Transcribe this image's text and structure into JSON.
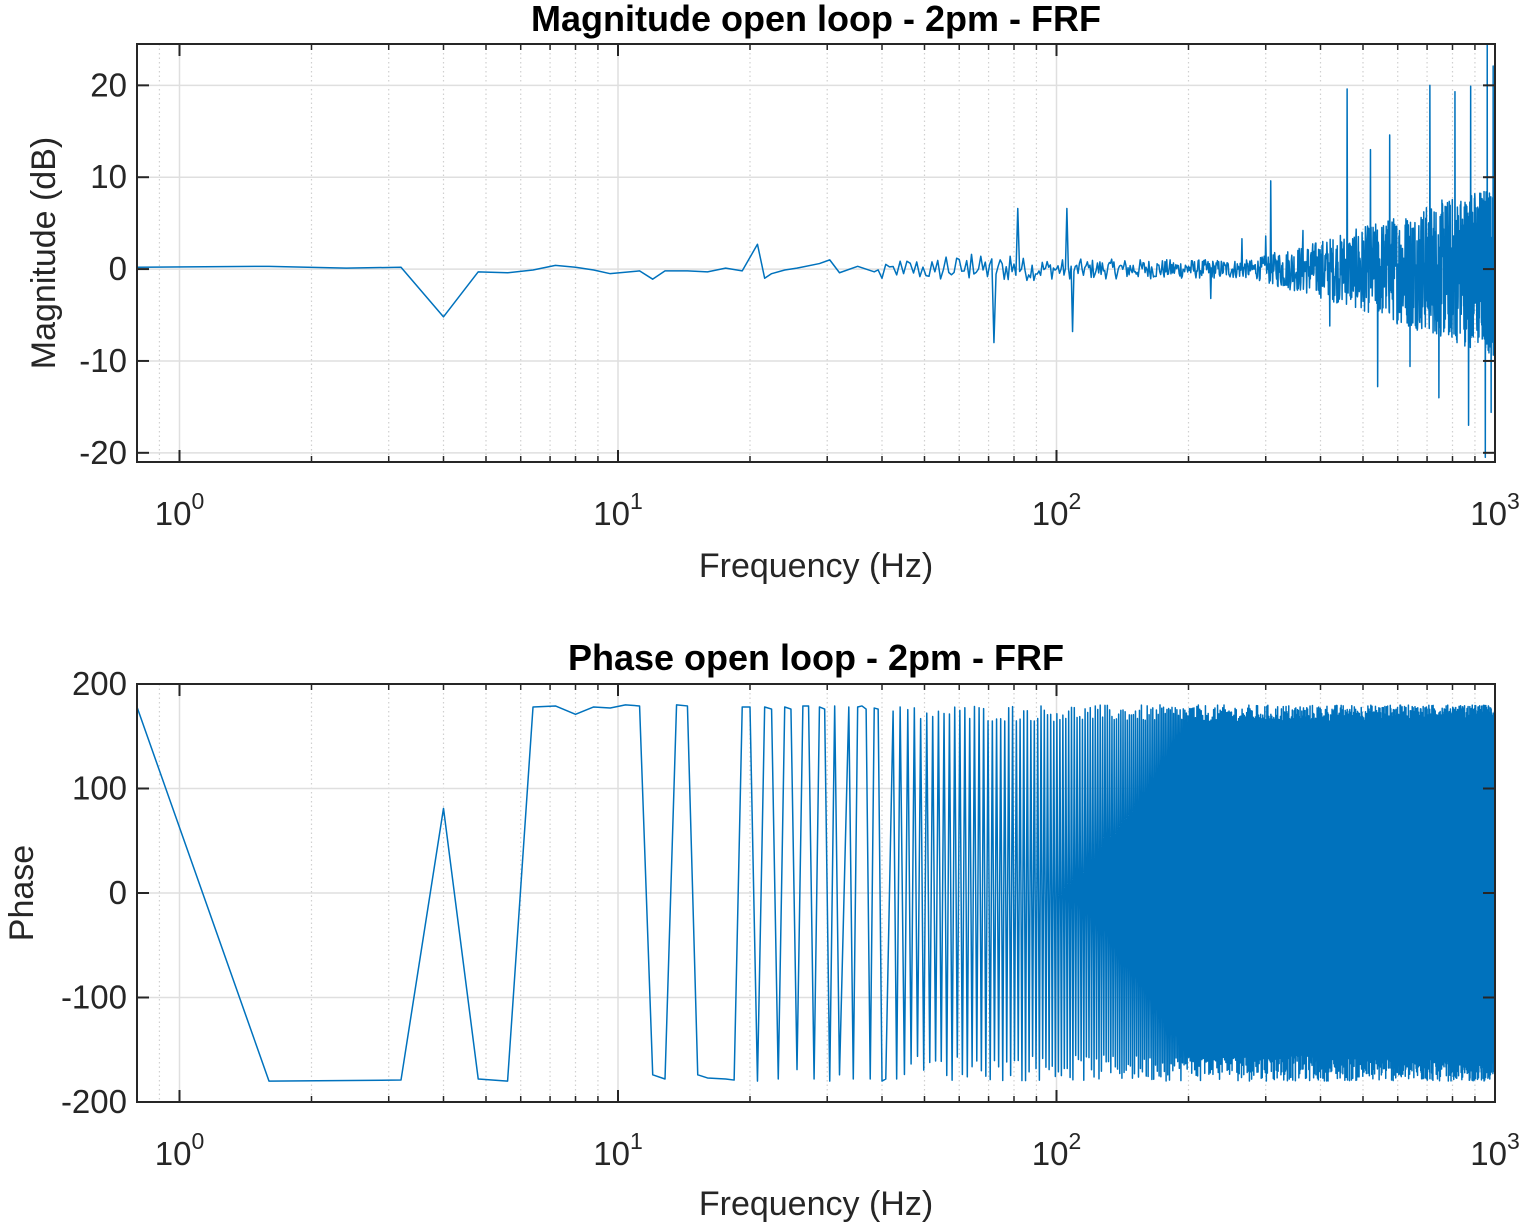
{
  "colors": {
    "line": "#0072BD",
    "axis": "#262626",
    "grid": "#dfdfdf",
    "background": "#ffffff"
  },
  "chart_data": [
    {
      "type": "line",
      "title": "Magnitude open loop - 2pm - FRF",
      "xlabel": "Frequency (Hz)",
      "ylabel": "Magnitude (dB)",
      "xscale": "log",
      "xlim": [
        0.8,
        1000
      ],
      "ylim": [
        -21,
        24.5
      ],
      "grid": "on (major and minor)",
      "xticks": [
        {
          "v": 1,
          "base": "10",
          "exp": "0"
        },
        {
          "v": 10,
          "base": "10",
          "exp": "1"
        },
        {
          "v": 100,
          "base": "10",
          "exp": "2"
        },
        {
          "v": 1000,
          "base": "10",
          "exp": "3"
        }
      ],
      "yticks": [
        {
          "v": -20,
          "label": "-20"
        },
        {
          "v": -10,
          "label": "-10"
        },
        {
          "v": 0,
          "label": "0"
        },
        {
          "v": 10,
          "label": "10"
        },
        {
          "v": 20,
          "label": "20"
        }
      ],
      "anchors": [
        [
          0.8,
          0.2
        ],
        [
          1.6,
          0.3
        ],
        [
          2.4,
          0.1
        ],
        [
          3.2,
          0.2
        ],
        [
          4.0,
          -5.2
        ],
        [
          4.8,
          -0.3
        ],
        [
          5.6,
          -0.4
        ],
        [
          6.4,
          -0.1
        ],
        [
          7.2,
          0.4
        ],
        [
          8.0,
          0.2
        ],
        [
          8.8,
          -0.1
        ],
        [
          9.6,
          -0.5
        ],
        [
          11.2,
          -0.2
        ],
        [
          12.0,
          -1.1
        ],
        [
          12.8,
          -0.2
        ],
        [
          14.4,
          -0.2
        ],
        [
          16.0,
          -0.3
        ],
        [
          17.6,
          0.1
        ],
        [
          19.2,
          -0.2
        ],
        [
          20.8,
          2.7
        ],
        [
          21.6,
          -1.0
        ],
        [
          22.4,
          -0.5
        ],
        [
          24.0,
          -0.1
        ],
        [
          25.6,
          0.1
        ],
        [
          28.8,
          0.6
        ],
        [
          30.4,
          1.0
        ],
        [
          32.0,
          -0.4
        ],
        [
          35.2,
          0.3
        ],
        [
          38.4,
          -0.3
        ],
        [
          40.0,
          -1.0
        ],
        [
          44.8,
          -0.5
        ],
        [
          52.8,
          -0.3
        ],
        [
          56.0,
          1.3
        ],
        [
          64.0,
          1.6
        ],
        [
          70.4,
          0.5
        ],
        [
          72.0,
          -8.0
        ],
        [
          73.6,
          0.3
        ],
        [
          78.4,
          1.4
        ],
        [
          81.6,
          6.6
        ],
        [
          83.2,
          0.0
        ],
        [
          96.0,
          0.2
        ],
        [
          105.6,
          6.6
        ],
        [
          108.8,
          -6.8
        ],
        [
          110.4,
          0.3
        ],
        [
          160.0,
          0.2
        ],
        [
          200.0,
          0.3
        ],
        [
          225.0,
          -3.2
        ],
        [
          265.0,
          3.3
        ],
        [
          290.0,
          0.2
        ],
        [
          300.0,
          3.6
        ],
        [
          308.0,
          9.6
        ],
        [
          310.0,
          -0.4
        ],
        [
          365.0,
          4.2
        ],
        [
          380.0,
          1.5
        ],
        [
          420.0,
          -6.2
        ],
        [
          460.0,
          19.6
        ],
        [
          495.0,
          -4.2
        ],
        [
          520.0,
          13.0
        ],
        [
          540.0,
          -12.8
        ],
        [
          575.0,
          14.6
        ],
        [
          640.0,
          -10.6
        ],
        [
          710.0,
          20.0
        ],
        [
          745.0,
          -14.0
        ],
        [
          810.0,
          19.3
        ],
        [
          870.0,
          -17.0
        ],
        [
          880.0,
          19.9
        ],
        [
          950.0,
          -20.5
        ],
        [
          960.0,
          24.5
        ],
        [
          980.0,
          -15.6
        ],
        [
          990.0,
          22.1
        ],
        [
          1000.0,
          -5.3
        ]
      ],
      "noise_amplitude": [
        [
          0.8,
          0.0
        ],
        [
          38.0,
          0.0
        ],
        [
          45.0,
          1.3
        ],
        [
          70.0,
          1.5
        ],
        [
          100.0,
          1.1
        ],
        [
          280.0,
          1.0
        ],
        [
          320.0,
          2.0
        ],
        [
          420.0,
          3.5
        ],
        [
          600.0,
          6.0
        ],
        [
          800.0,
          8.0
        ],
        [
          1000.0,
          9.5
        ]
      ]
    },
    {
      "type": "line",
      "title": "Phase open loop - 2pm - FRF",
      "xlabel": "Frequency (Hz)",
      "ylabel": "Phase",
      "xscale": "log",
      "xlim": [
        0.8,
        1000
      ],
      "ylim": [
        -200,
        200
      ],
      "grid": "on (major and minor)",
      "xticks": [
        {
          "v": 1,
          "base": "10",
          "exp": "0"
        },
        {
          "v": 10,
          "base": "10",
          "exp": "1"
        },
        {
          "v": 100,
          "base": "10",
          "exp": "2"
        },
        {
          "v": 1000,
          "base": "10",
          "exp": "3"
        }
      ],
      "yticks": [
        {
          "v": -200,
          "label": "-200"
        },
        {
          "v": -100,
          "label": "-100"
        },
        {
          "v": 0,
          "label": "0"
        },
        {
          "v": 100,
          "label": "100"
        },
        {
          "v": 200,
          "label": "200"
        }
      ],
      "anchors": [
        [
          0.8,
          178
        ],
        [
          1.6,
          -180
        ],
        [
          3.2,
          -179
        ],
        [
          4.0,
          81
        ],
        [
          4.8,
          -178
        ],
        [
          5.6,
          -180
        ],
        [
          6.4,
          178
        ],
        [
          7.2,
          179
        ],
        [
          8.0,
          171
        ],
        [
          8.8,
          178
        ],
        [
          9.6,
          177
        ],
        [
          10.4,
          180
        ],
        [
          11.2,
          179
        ],
        [
          12.0,
          -174
        ],
        [
          12.8,
          -178
        ],
        [
          13.6,
          180
        ],
        [
          14.4,
          179
        ],
        [
          15.2,
          -174
        ],
        [
          16.0,
          -177
        ],
        [
          17.6,
          -178
        ],
        [
          18.4,
          -179
        ],
        [
          19.2,
          178
        ],
        [
          20.0,
          178
        ],
        [
          20.8,
          -180
        ],
        [
          21.6,
          178
        ],
        [
          22.4,
          176
        ],
        [
          23.2,
          -178
        ],
        [
          24.0,
          178
        ],
        [
          24.8,
          176
        ],
        [
          25.6,
          -169
        ],
        [
          26.4,
          179
        ],
        [
          27.2,
          179
        ],
        [
          28.0,
          -178
        ],
        [
          28.8,
          178
        ],
        [
          29.6,
          176
        ],
        [
          30.4,
          -180
        ],
        [
          31.2,
          179
        ],
        [
          32.0,
          -174
        ],
        [
          33.6,
          178
        ],
        [
          34.4,
          -178
        ],
        [
          35.2,
          178
        ],
        [
          36.0,
          179
        ],
        [
          36.8,
          176
        ],
        [
          37.6,
          -178
        ],
        [
          38.4,
          177
        ],
        [
          39.2,
          176
        ],
        [
          40.0,
          -180
        ],
        [
          40.8,
          -178
        ],
        [
          42.4,
          174
        ],
        [
          43.2,
          -178
        ],
        [
          44.0,
          178
        ]
      ],
      "alternation": {
        "from_hz": 45,
        "to_hz": 1000,
        "spacing_hz": 0.8,
        "top_range": [
          164,
          180
        ],
        "bottom_range": [
          -180,
          -155
        ]
      }
    }
  ]
}
